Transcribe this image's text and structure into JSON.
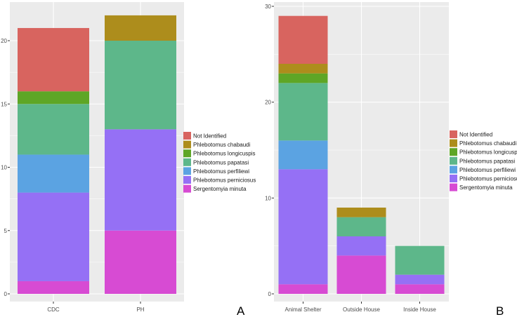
{
  "colors": {
    "Not Identified": "#D8645F",
    "Phlebotomus chabaudi": "#AD8D1C",
    "Phlebotomus longicuspis": "#5EA626",
    "Phlebotomus papatasi": "#5DB78A",
    "Phlebotomus perfiliewi": "#5BA3E2",
    "Phlebotomus perniciosus": "#9570F5",
    "Sergentomyia minuta": "#D74BD3",
    "panel_bg": "#EBEBEB",
    "grid": "#FFFFFF"
  },
  "chart_data": [
    {
      "type": "bar",
      "stacked": true,
      "panel_label": "A",
      "title": "",
      "xlabel": "",
      "ylabel": "",
      "categories": [
        "CDC",
        "PH"
      ],
      "ylim": [
        0,
        22
      ],
      "yticks": [
        0,
        5,
        10,
        15,
        20
      ],
      "ytick_labels": [
        "0",
        "5",
        "10",
        "15",
        "20"
      ],
      "series": [
        {
          "name": "Sergentomyia minuta",
          "values": [
            1,
            5
          ]
        },
        {
          "name": "Phlebotomus perniciosus",
          "values": [
            7,
            8
          ]
        },
        {
          "name": "Phlebotomus perfiliewi",
          "values": [
            3,
            0
          ]
        },
        {
          "name": "Phlebotomus papatasi",
          "values": [
            4,
            7
          ]
        },
        {
          "name": "Phlebotomus longicuspis",
          "values": [
            1,
            0
          ]
        },
        {
          "name": "Phlebotomus chabaudi",
          "values": [
            0,
            2
          ]
        },
        {
          "name": "Not Identified",
          "values": [
            5,
            0
          ]
        }
      ],
      "legend": [
        "Not Identified",
        "Phlebotomus chabaudi",
        "Phlebotomus longicuspis",
        "Phlebotomus papatasi",
        "Phlebotomus perfiliewi",
        "Phlebotomus perniciosus",
        "Sergentomyia minuta"
      ],
      "legend_position": "right"
    },
    {
      "type": "bar",
      "stacked": true,
      "panel_label": "B",
      "title": "",
      "xlabel": "",
      "ylabel": "",
      "categories": [
        "Animal Shelter",
        "Outside House",
        "Inside House"
      ],
      "ylim": [
        0,
        30
      ],
      "yticks": [
        0,
        10,
        20,
        30
      ],
      "ytick_labels": [
        "0",
        "10",
        "20",
        "30"
      ],
      "series": [
        {
          "name": "Sergentomyia minuta",
          "values": [
            1,
            4,
            1
          ]
        },
        {
          "name": "Phlebotomus perniciosus",
          "values": [
            12,
            2,
            1
          ]
        },
        {
          "name": "Phlebotomus perfiliewi",
          "values": [
            3,
            0,
            0
          ]
        },
        {
          "name": "Phlebotomus papatasi",
          "values": [
            6,
            2,
            3
          ]
        },
        {
          "name": "Phlebotomus longicuspis",
          "values": [
            1,
            0,
            0
          ]
        },
        {
          "name": "Phlebotomus chabaudi",
          "values": [
            1,
            1,
            0
          ]
        },
        {
          "name": "Not Identified",
          "values": [
            5,
            0,
            0
          ]
        }
      ],
      "legend": [
        "Not Identified",
        "Phlebotomus chabaudi",
        "Phlebotomus longicuspis",
        "Phlebotomus papatasi",
        "Phlebotomus perfiliewi",
        "Phlebotomus perniciosus",
        "Sergentomyia minuta"
      ],
      "legend_position": "right"
    }
  ]
}
